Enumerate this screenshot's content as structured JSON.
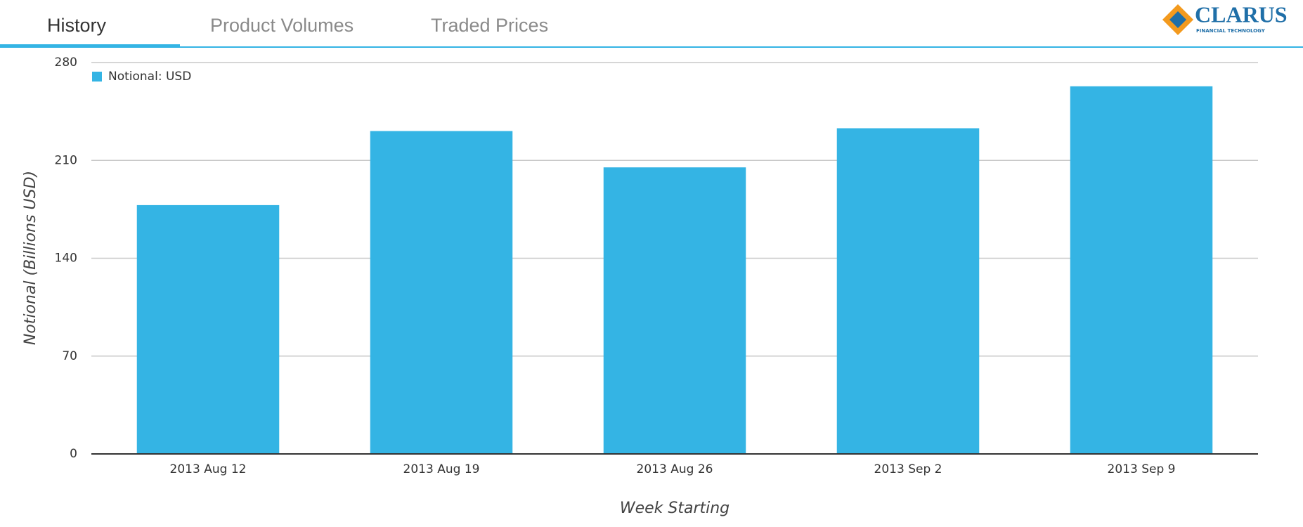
{
  "tabs": [
    "History",
    "Product Volumes",
    "Traded Prices"
  ],
  "logo": {
    "name": "CLARUS",
    "tagline": "FINANCIAL TECHNOLOGY"
  },
  "chart_data": {
    "type": "bar",
    "categories": [
      "2013 Aug 12",
      "2013 Aug 19",
      "2013 Aug 26",
      "2013 Sep 2",
      "2013 Sep 9"
    ],
    "series": [
      {
        "name": "Notional: USD",
        "color": "#34b4e4",
        "values": [
          178,
          231,
          205,
          233,
          263
        ]
      }
    ],
    "ylim": [
      0,
      280
    ],
    "yticks": [
      0,
      70,
      140,
      210,
      280
    ],
    "grid": true,
    "xlabel": "Week Starting",
    "ylabel": "Notional (Billions USD)"
  }
}
